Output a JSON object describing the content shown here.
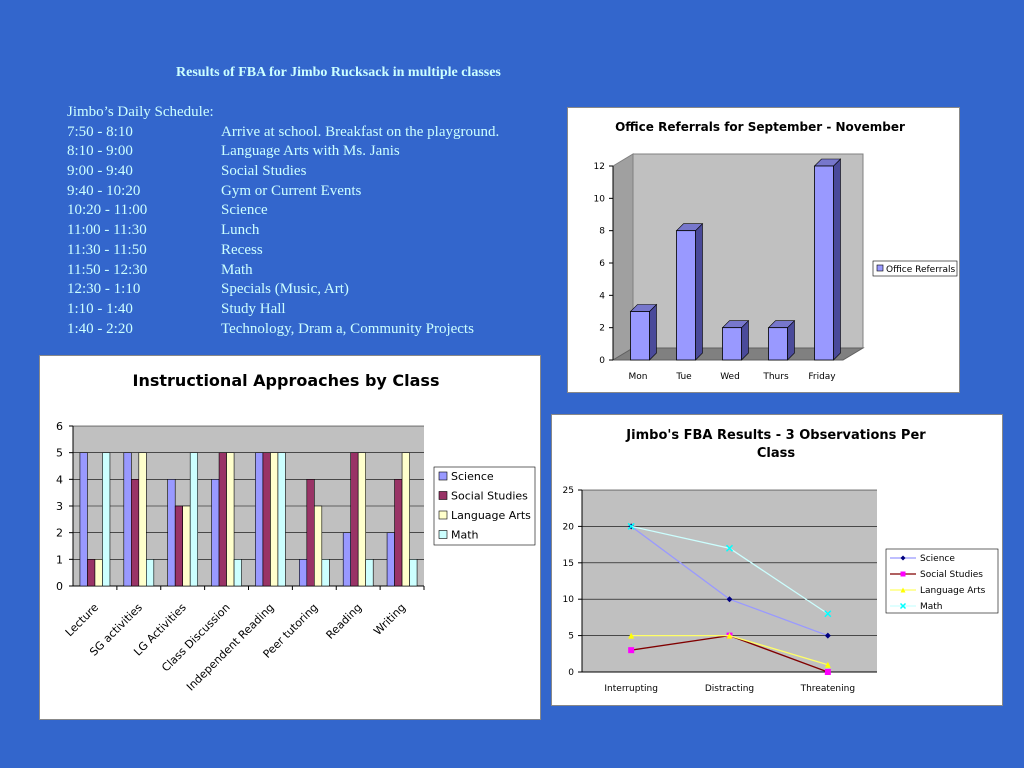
{
  "page": {
    "title": "Results of FBA for Jimbo Rucksack in multiple classes",
    "schedule_heading": "Jimbo’s Daily Schedule:",
    "schedule": [
      {
        "time": "7:50 -  8:10",
        "activity": "Arrive at school. Breakfast on the playground."
      },
      {
        "time": "8:10 -  9:00",
        "activity": "Language Arts with Ms. Janis"
      },
      {
        "time": "9:00 -  9:40",
        "activity": "Social Studies"
      },
      {
        "time": "9:40 -  10:20",
        "activity": "Gym or Current Events"
      },
      {
        "time": "10:20 -  11:00",
        "activity": "Science"
      },
      {
        "time": "11:00 -  11:30",
        "activity": "Lunch"
      },
      {
        "time": "11:30 -  11:50",
        "activity": "Recess"
      },
      {
        "time": "11:50 -  12:30",
        "activity": "Math"
      },
      {
        "time": "12:30 -  1:10",
        "activity": "Specials (Music, Art)"
      },
      {
        "time": "1:10 -  1:40",
        "activity": "Study Hall"
      },
      {
        "time": "1:40 -  2:20",
        "activity": "Technology, Dram a, Community Projects"
      }
    ],
    "colors": {
      "background": "#3366CC",
      "text": "#CCFFFF"
    }
  },
  "chart_data": [
    {
      "id": "office-referrals",
      "type": "bar",
      "title": "Office Referrals for September - November",
      "categories": [
        "Mon",
        "Tue",
        "Wed",
        "Thurs",
        "Friday"
      ],
      "series": [
        {
          "name": "Office Referrals",
          "values": [
            3,
            8,
            2,
            2,
            12
          ],
          "color": "#9999FF"
        }
      ],
      "ylim": [
        0,
        12
      ],
      "yticks": [
        0,
        2,
        4,
        6,
        8,
        10,
        12
      ],
      "grid": false,
      "style": "3d",
      "legend": "right"
    },
    {
      "id": "instructional-approaches",
      "type": "bar",
      "title": "Instructional Approaches by Class",
      "categories": [
        "Lecture",
        "SG activities",
        "LG Activities",
        "Class Discussion",
        "Independent Reading",
        "Peer tutoring",
        "Reading",
        "Writing"
      ],
      "series": [
        {
          "name": "Science",
          "values": [
            5,
            5,
            4,
            4,
            5,
            1,
            2,
            2
          ],
          "color": "#9999FF"
        },
        {
          "name": "Social Studies",
          "values": [
            1,
            4,
            3,
            5,
            5,
            4,
            5,
            4
          ],
          "color": "#993366"
        },
        {
          "name": "Language Arts",
          "values": [
            1,
            5,
            3,
            5,
            5,
            3,
            5,
            5
          ],
          "color": "#FFFFCC"
        },
        {
          "name": "Math",
          "values": [
            5,
            1,
            5,
            1,
            5,
            1,
            1,
            1
          ],
          "color": "#CCFFFF"
        }
      ],
      "ylim": [
        0,
        6
      ],
      "yticks": [
        0,
        1,
        2,
        3,
        4,
        5,
        6
      ],
      "grid": true,
      "legend": "right"
    },
    {
      "id": "fba-results",
      "type": "line",
      "title": "Jimbo's FBA Results - 3 Observations Per Class",
      "title_lines": [
        "Jimbo's FBA Results - 3 Observations Per",
        "Class"
      ],
      "categories": [
        "Interrupting",
        "Distracting",
        "Threatening"
      ],
      "series": [
        {
          "name": "Science",
          "values": [
            20,
            10,
            5
          ],
          "color": "#9999FF",
          "marker_color": "#000080",
          "marker": "diamond"
        },
        {
          "name": "Social Studies",
          "values": [
            3,
            5,
            0
          ],
          "color": "#800000",
          "marker_color": "#FF00FF",
          "marker": "square"
        },
        {
          "name": "Language Arts",
          "values": [
            5,
            5,
            1
          ],
          "color": "#FFFF66",
          "marker_color": "#FFFF00",
          "marker": "triangle"
        },
        {
          "name": "Math",
          "values": [
            20,
            17,
            8
          ],
          "color": "#CCFFFF",
          "marker_color": "#00FFFF",
          "marker": "x"
        }
      ],
      "ylim": [
        0,
        25
      ],
      "yticks": [
        0,
        5,
        10,
        15,
        20,
        25
      ],
      "grid": true,
      "legend": "right"
    }
  ]
}
